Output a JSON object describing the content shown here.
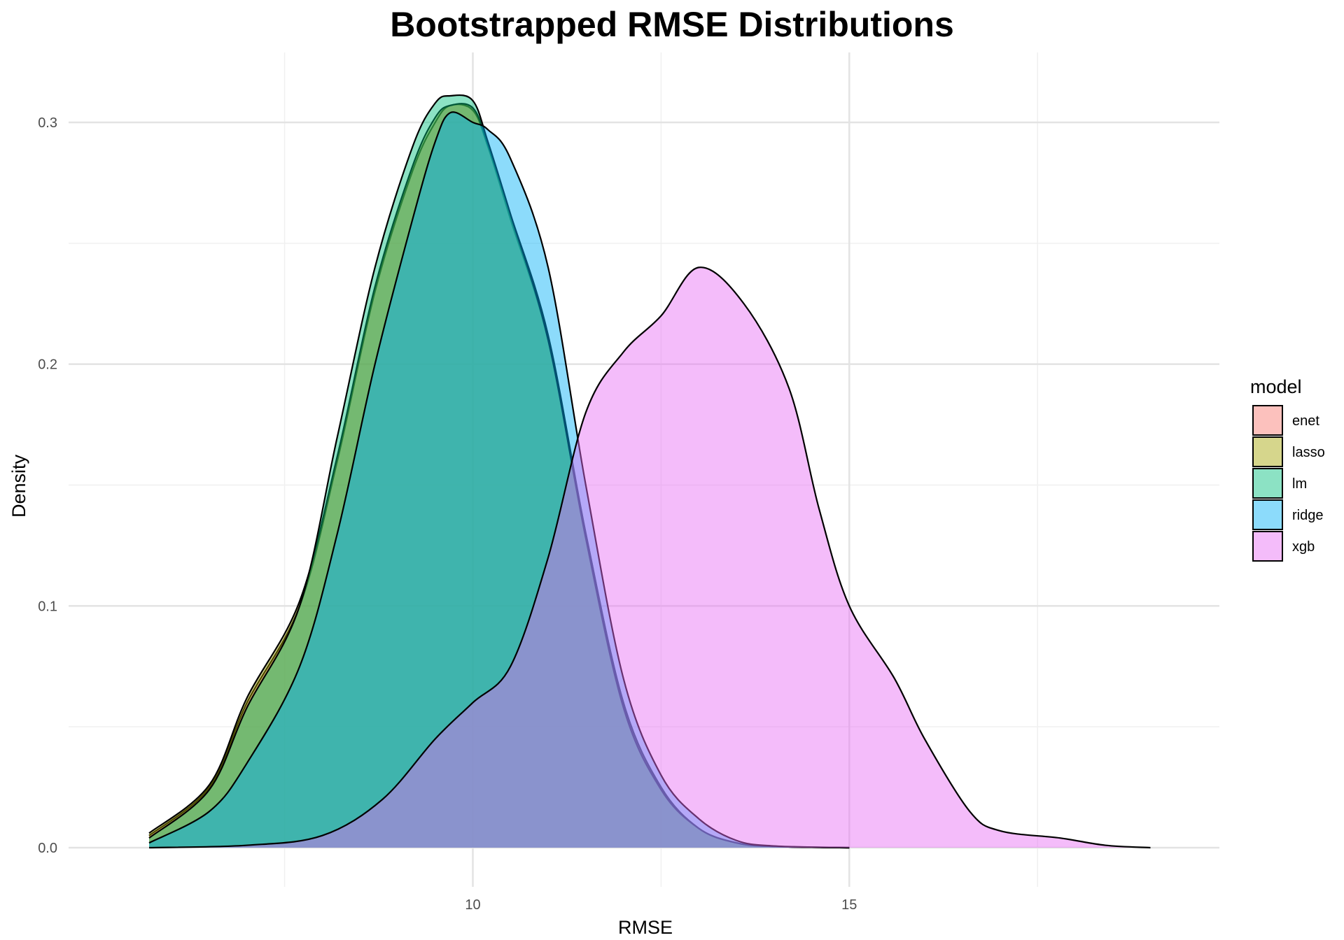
{
  "chart_data": {
    "type": "area",
    "title": "Bootstrapped RMSE Distributions",
    "xlabel": "RMSE",
    "ylabel": "Density",
    "xlim": [
      5.3,
      19.2
    ],
    "ylim": [
      0,
      0.3
    ],
    "x_ticks": [
      10,
      15
    ],
    "x_minor": [
      7.5,
      12.5,
      17.5
    ],
    "y_ticks": [
      0.0,
      0.1,
      0.2,
      0.3
    ],
    "y_tick_labels": [
      "0.0",
      "0.1",
      "0.2",
      "0.3"
    ],
    "y_minor": [
      0.05,
      0.15,
      0.25
    ],
    "grid": true,
    "legend": {
      "title": "model",
      "position": "right",
      "items": [
        "enet",
        "lasso",
        "lm",
        "ridge",
        "xgb"
      ]
    },
    "colors": {
      "enet": "#F8766D",
      "lasso": "#A3A500",
      "lm": "#00BF7D",
      "ridge": "#00B0F6",
      "xgb": "#E76BF3"
    },
    "series": [
      {
        "name": "enet",
        "x": [
          5.7,
          6.5,
          7.0,
          7.7,
          8.2,
          8.7,
          9.2,
          9.5,
          9.7,
          10.0,
          10.2,
          10.5,
          11.0,
          11.5,
          12.0,
          12.5,
          13.0,
          13.5,
          14.0,
          15.0
        ],
        "y": [
          0.005,
          0.025,
          0.06,
          0.1,
          0.16,
          0.23,
          0.28,
          0.3,
          0.307,
          0.305,
          0.29,
          0.26,
          0.21,
          0.13,
          0.06,
          0.025,
          0.008,
          0.002,
          0.0005,
          0.0
        ]
      },
      {
        "name": "lasso",
        "x": [
          5.7,
          6.5,
          7.0,
          7.7,
          8.2,
          8.7,
          9.2,
          9.5,
          9.7,
          10.0,
          10.2,
          10.5,
          11.0,
          11.5,
          12.0,
          12.5,
          13.0,
          13.5,
          14.0,
          15.0
        ],
        "y": [
          0.006,
          0.026,
          0.062,
          0.102,
          0.162,
          0.232,
          0.282,
          0.302,
          0.307,
          0.306,
          0.291,
          0.262,
          0.212,
          0.13,
          0.06,
          0.025,
          0.008,
          0.002,
          0.0005,
          0.0
        ]
      },
      {
        "name": "lm",
        "x": [
          5.7,
          6.5,
          7.0,
          7.7,
          8.2,
          8.7,
          9.2,
          9.5,
          9.7,
          10.0,
          10.2,
          10.5,
          11.0,
          11.5,
          12.0,
          12.5,
          13.0,
          13.5,
          14.0,
          15.0
        ],
        "y": [
          0.004,
          0.024,
          0.058,
          0.1,
          0.17,
          0.24,
          0.29,
          0.308,
          0.311,
          0.309,
          0.292,
          0.262,
          0.21,
          0.128,
          0.058,
          0.024,
          0.008,
          0.002,
          0.0005,
          0.0
        ]
      },
      {
        "name": "ridge",
        "x": [
          5.7,
          6.5,
          7.0,
          7.7,
          8.2,
          8.7,
          9.2,
          9.5,
          9.7,
          10.0,
          10.2,
          10.5,
          11.0,
          11.5,
          12.0,
          12.5,
          13.0,
          13.5,
          14.0,
          15.0
        ],
        "y": [
          0.002,
          0.015,
          0.035,
          0.075,
          0.13,
          0.2,
          0.26,
          0.292,
          0.304,
          0.3,
          0.297,
          0.285,
          0.24,
          0.15,
          0.07,
          0.03,
          0.012,
          0.003,
          0.0007,
          0.0
        ]
      },
      {
        "name": "xgb",
        "x": [
          5.7,
          7.0,
          8.0,
          8.8,
          9.5,
          10.0,
          10.5,
          11.0,
          11.5,
          12.0,
          12.5,
          13.0,
          13.6,
          14.2,
          14.6,
          15.0,
          15.6,
          16.0,
          16.6,
          17.0,
          17.8,
          18.4,
          19.0
        ],
        "y": [
          0.0,
          0.001,
          0.005,
          0.02,
          0.045,
          0.06,
          0.075,
          0.12,
          0.18,
          0.205,
          0.22,
          0.24,
          0.225,
          0.19,
          0.14,
          0.1,
          0.07,
          0.045,
          0.015,
          0.007,
          0.004,
          0.001,
          0.0
        ]
      }
    ]
  }
}
